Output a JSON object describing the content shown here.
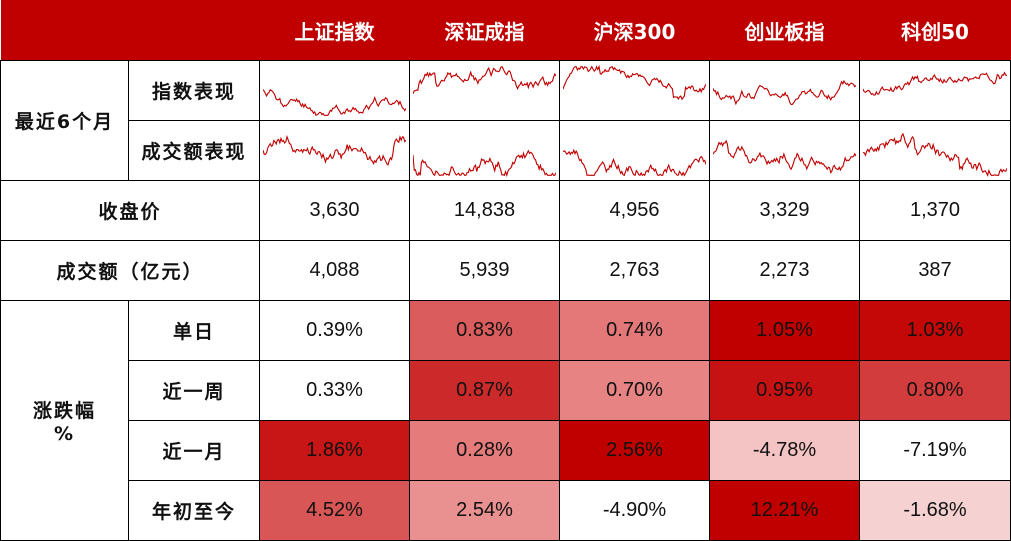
{
  "header": [
    "上证指数",
    "深证成指",
    "沪深300",
    "创业板指",
    "科创50"
  ],
  "section_recent": {
    "label": "最近6个月",
    "row_index_label": "指数表现",
    "row_volume_label": "成交额表现"
  },
  "close": {
    "label": "收盘价",
    "values": [
      "3,630",
      "14,838",
      "4,956",
      "3,329",
      "1,370"
    ]
  },
  "turnover": {
    "label": "成交额（亿元）",
    "values": [
      "4,088",
      "5,939",
      "2,763",
      "2,273",
      "387"
    ]
  },
  "change": {
    "label_line1": "涨跌幅",
    "label_line2": "%",
    "rows": [
      {
        "label": "单日",
        "values": [
          "0.39%",
          "0.83%",
          "0.74%",
          "1.05%",
          "1.03%"
        ],
        "colors": [
          "#ffffff",
          "#db5c5c",
          "#e47878",
          "#c00000",
          "#c40808"
        ]
      },
      {
        "label": "近一周",
        "values": [
          "0.33%",
          "0.87%",
          "0.70%",
          "0.95%",
          "0.80%"
        ],
        "colors": [
          "#ffffff",
          "#cc2a2a",
          "#e88383",
          "#c61212",
          "#d33c3c"
        ]
      },
      {
        "label": "近一月",
        "values": [
          "1.86%",
          "0.28%",
          "2.56%",
          "-4.78%",
          "-7.19%"
        ],
        "colors": [
          "#c81515",
          "#e57b7b",
          "#c00000",
          "#f4c3c3",
          "#ffffff"
        ]
      },
      {
        "label": "年初至今",
        "values": [
          "4.52%",
          "2.54%",
          "-4.90%",
          "12.21%",
          "-1.68%"
        ],
        "colors": [
          "#d85656",
          "#e99090",
          "#ffffff",
          "#c00000",
          "#f6d1d1"
        ]
      }
    ]
  },
  "colors": {
    "header_bg": "#c00000",
    "sparkline": "#c00000",
    "border": "#000000"
  }
}
